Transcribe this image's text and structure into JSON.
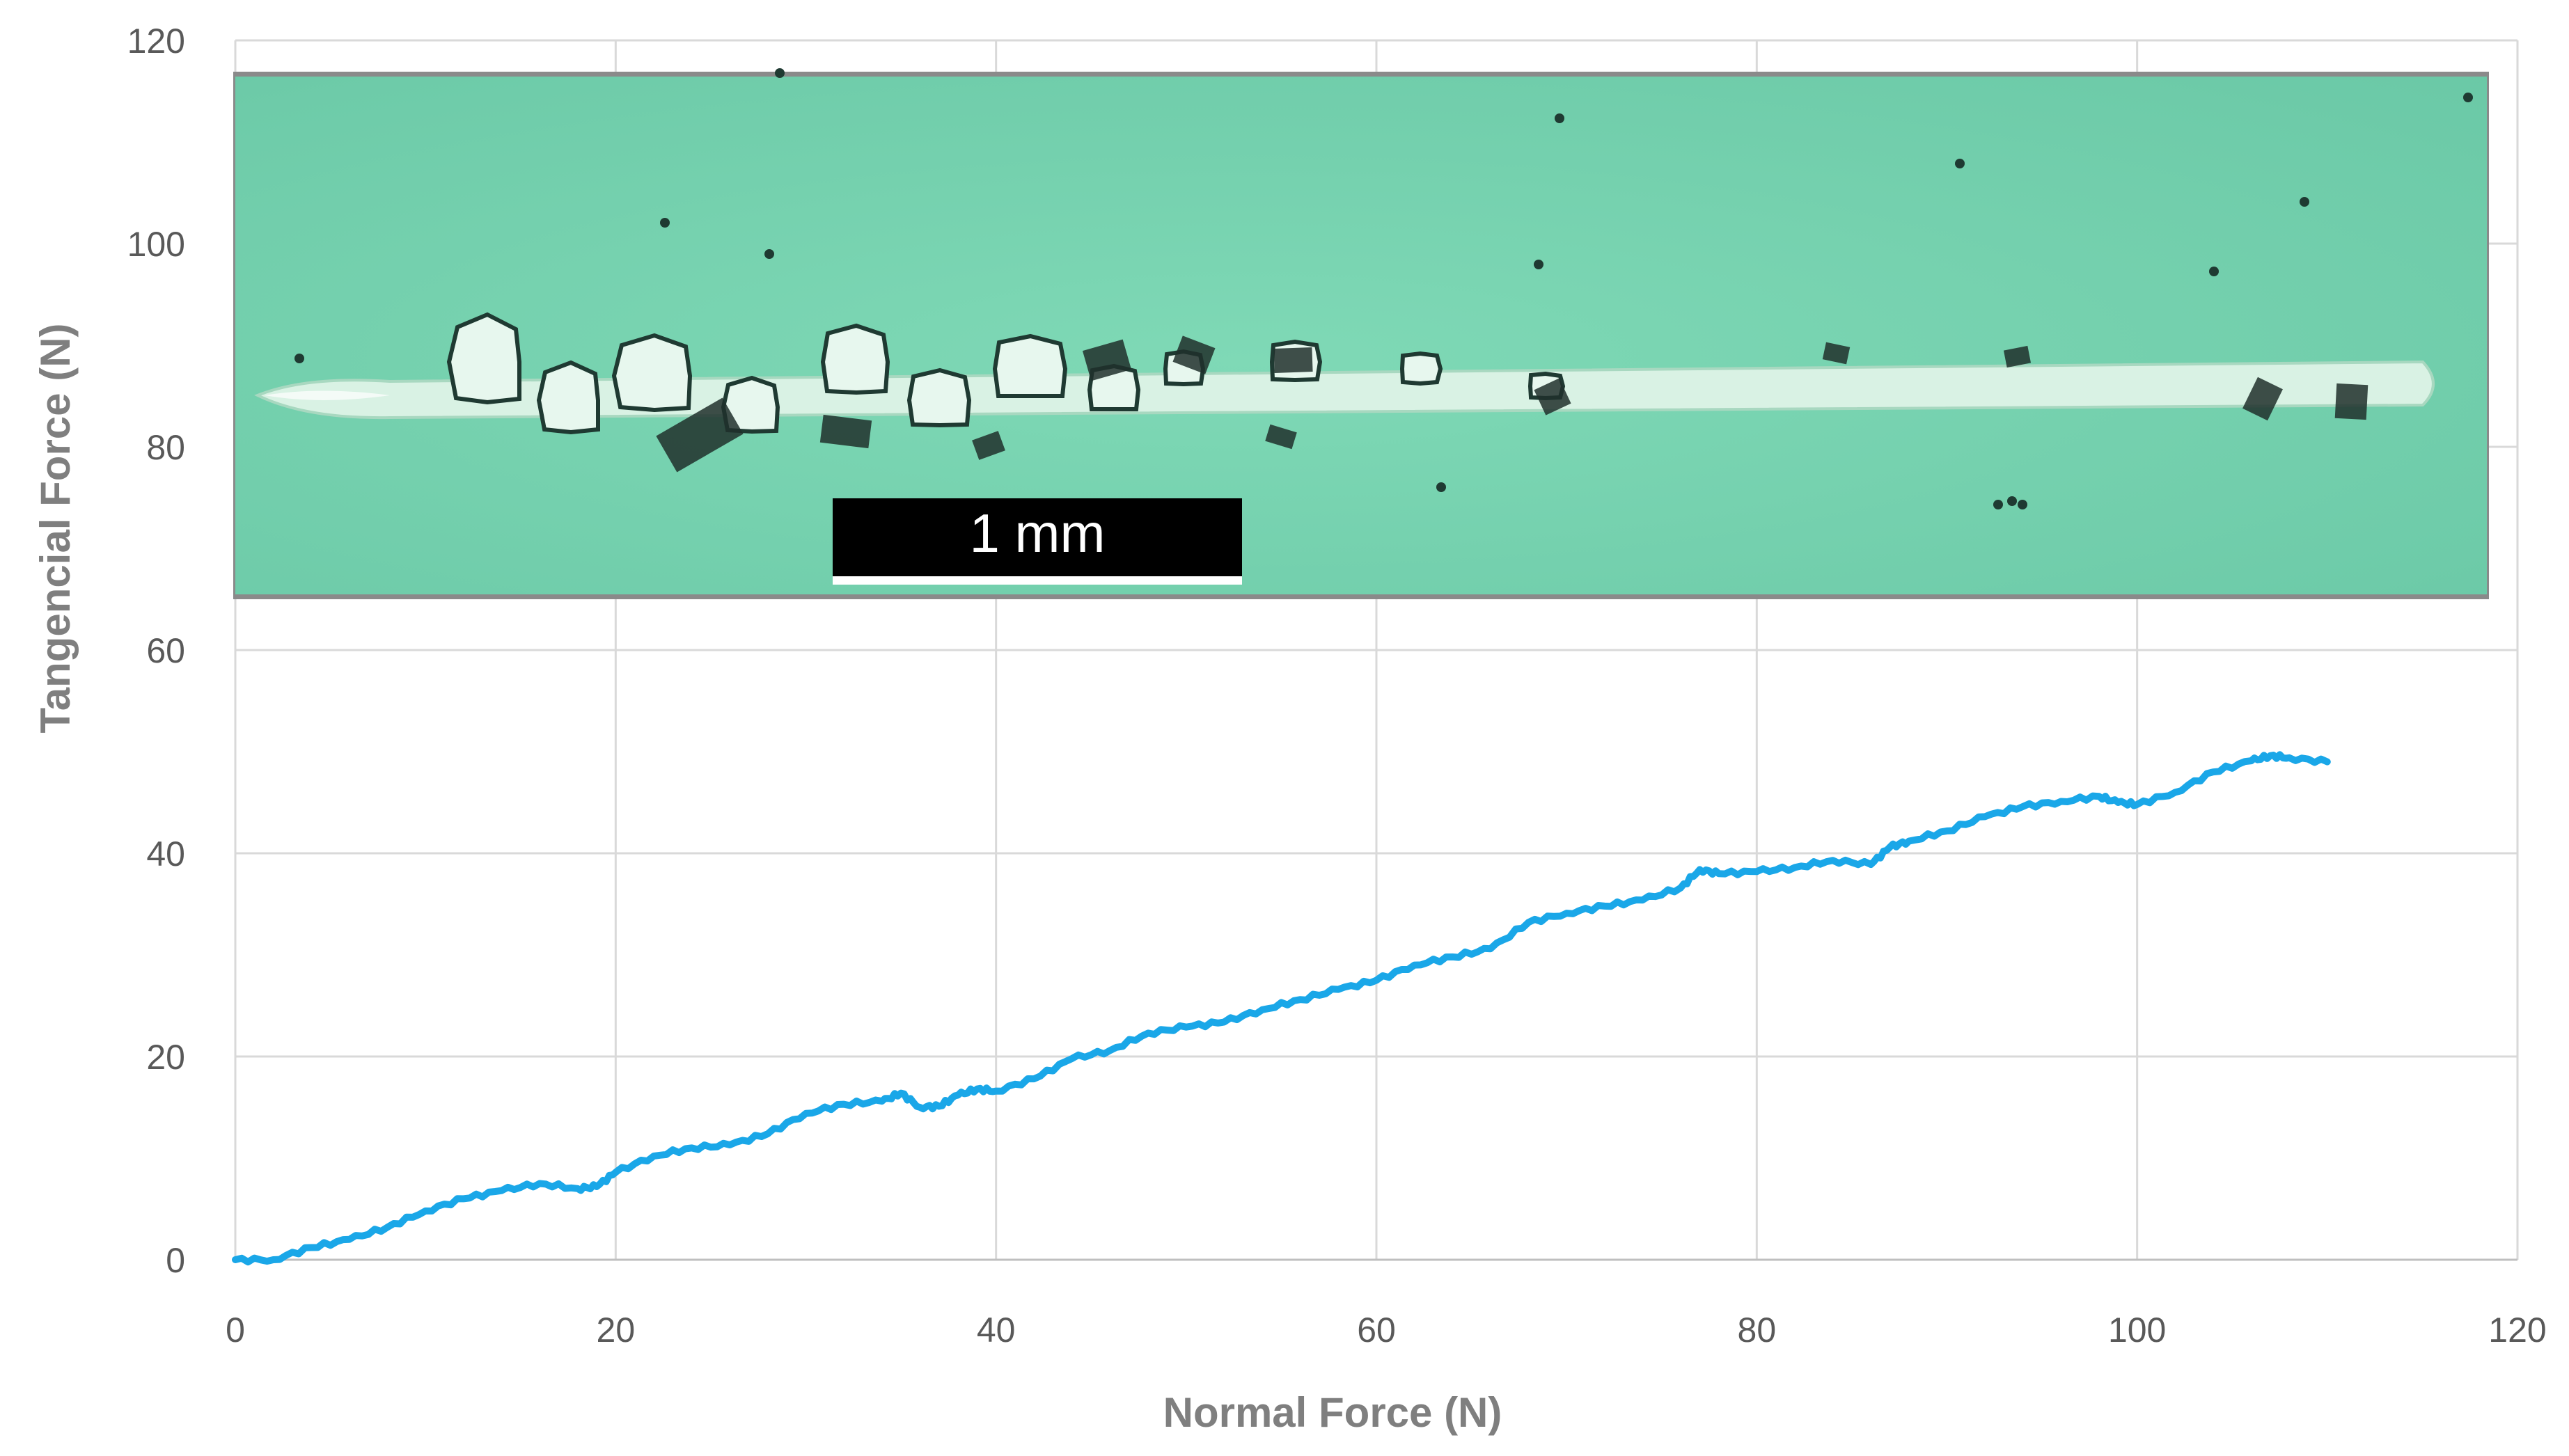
{
  "chart_data": {
    "type": "line",
    "title": "",
    "xlabel": "Normal Force (N)",
    "ylabel": "Tangencial Force (N)",
    "xlim": [
      0,
      120
    ],
    "ylim": [
      0,
      120
    ],
    "x_ticks": [
      "0",
      "20",
      "40",
      "60",
      "80",
      "100",
      "120"
    ],
    "y_ticks": [
      "0",
      "20",
      "40",
      "60",
      "80",
      "100",
      "120"
    ],
    "grid": true,
    "legend": "none",
    "series": [
      {
        "color": "#1aa7e8",
        "x": [
          0,
          2,
          4,
          6,
          8,
          10,
          12,
          14,
          16,
          18,
          19,
          20,
          22,
          24,
          26,
          28,
          30,
          32,
          34,
          35,
          36,
          37,
          38,
          39,
          40,
          42,
          44,
          46,
          48,
          50,
          52,
          54,
          56,
          58,
          60,
          62,
          64,
          66,
          68,
          70,
          72,
          74,
          76,
          77,
          78,
          80,
          82,
          84,
          86,
          87,
          88,
          90,
          92,
          94,
          96,
          98,
          99,
          100,
          102,
          104,
          106,
          107,
          108,
          110
        ],
        "y": [
          0,
          0,
          1.2,
          2.0,
          3.2,
          4.8,
          6.0,
          6.8,
          7.5,
          7.0,
          7.2,
          8.6,
          10.2,
          11.0,
          11.3,
          12.4,
          14.4,
          15.3,
          15.6,
          16.4,
          15.0,
          15.1,
          16.2,
          16.8,
          16.6,
          17.8,
          19.8,
          20.6,
          22.3,
          22.9,
          23.4,
          24.6,
          25.6,
          26.6,
          27.5,
          29.0,
          29.8,
          30.6,
          33.2,
          34.1,
          34.8,
          35.4,
          36.6,
          38.4,
          38.0,
          38.2,
          38.6,
          39.3,
          38.9,
          40.6,
          41.2,
          42.2,
          43.6,
          44.6,
          45.1,
          45.6,
          45.0,
          44.8,
          46.0,
          48.0,
          49.1,
          49.6,
          49.4,
          49.0
        ]
      }
    ],
    "inset_image": {
      "scale_bar_label": "1 mm"
    }
  }
}
